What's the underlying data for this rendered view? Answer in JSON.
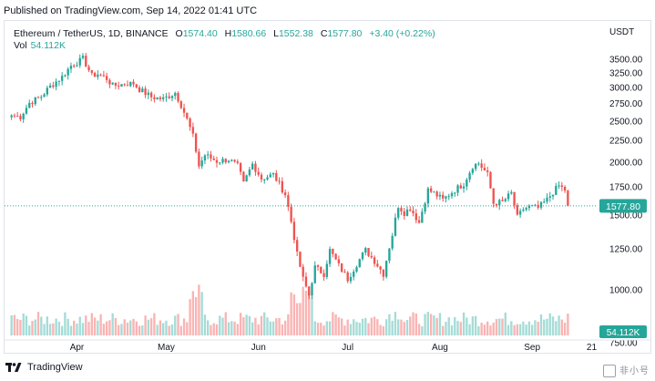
{
  "header": {
    "published": "Published on TradingView.com, Sep 14, 2022 01:41 UTC"
  },
  "legend": {
    "symbol": "Ethereum / TetherUS, 1D, BINANCE",
    "open_label": "O",
    "open": "1574.40",
    "high_label": "H",
    "high": "1580.66",
    "low_label": "L",
    "low": "1552.38",
    "close_label": "C",
    "close": "1577.80",
    "change": "+3.40 (+0.22%)",
    "vol_label": "Vol",
    "vol_value": "54.112K"
  },
  "price_axis": {
    "currency": "USDT",
    "last_price_label": "1577.80",
    "volume_label": "54.112K"
  },
  "time_axis": {
    "labels": [
      "Apr",
      "May",
      "Jun",
      "Jul",
      "Aug",
      "Sep",
      "21"
    ]
  },
  "footer": {
    "brand": "TradingView"
  },
  "watermark": {
    "text": "非小号"
  },
  "colors": {
    "up": "#26a69a",
    "down": "#ef5350",
    "up_volume": "#a5dcd7",
    "down_volume": "#f9b4b3",
    "last_price_line": "#26a69a",
    "axis_text": "#131722"
  },
  "chart_data": {
    "type": "candlestick",
    "timeframe": "1D",
    "y_scale": "log",
    "y_ticks": [
      750,
      1000,
      1250,
      1500,
      1750,
      2000,
      2250,
      2500,
      2750,
      3000,
      3250,
      3500
    ],
    "last_price": 1577.8,
    "x_start": "2022-03-10",
    "x_end": "2022-09-13",
    "waypoints": [
      [
        "2022-03-10",
        2580
      ],
      [
        "2022-03-13",
        2560
      ],
      [
        "2022-03-16",
        2760
      ],
      [
        "2022-03-20",
        2860
      ],
      [
        "2022-03-23",
        3020
      ],
      [
        "2022-03-27",
        3180
      ],
      [
        "2022-03-30",
        3380
      ],
      [
        "2022-04-02",
        3470
      ],
      [
        "2022-04-03",
        3510
      ],
      [
        "2022-04-06",
        3200
      ],
      [
        "2022-04-08",
        3230
      ],
      [
        "2022-04-11",
        3150
      ],
      [
        "2022-04-13",
        3030
      ],
      [
        "2022-04-17",
        3060
      ],
      [
        "2022-04-20",
        3070
      ],
      [
        "2022-04-22",
        2970
      ],
      [
        "2022-04-26",
        2850
      ],
      [
        "2022-04-30",
        2820
      ],
      [
        "2022-05-04",
        2920
      ],
      [
        "2022-05-06",
        2730
      ],
      [
        "2022-05-08",
        2520
      ],
      [
        "2022-05-10",
        2300
      ],
      [
        "2022-05-12",
        1960
      ],
      [
        "2022-05-14",
        2080
      ],
      [
        "2022-05-18",
        2010
      ],
      [
        "2022-05-22",
        2030
      ],
      [
        "2022-05-25",
        1960
      ],
      [
        "2022-05-27",
        1780
      ],
      [
        "2022-05-30",
        1980
      ],
      [
        "2022-06-02",
        1830
      ],
      [
        "2022-06-06",
        1870
      ],
      [
        "2022-06-10",
        1680
      ],
      [
        "2022-06-12",
        1450
      ],
      [
        "2022-06-14",
        1210
      ],
      [
        "2022-06-16",
        1060
      ],
      [
        "2022-06-18",
        970
      ],
      [
        "2022-06-20",
        1130
      ],
      [
        "2022-06-23",
        1090
      ],
      [
        "2022-06-25",
        1240
      ],
      [
        "2022-06-28",
        1140
      ],
      [
        "2022-07-01",
        1060
      ],
      [
        "2022-07-04",
        1150
      ],
      [
        "2022-07-07",
        1240
      ],
      [
        "2022-07-10",
        1170
      ],
      [
        "2022-07-13",
        1090
      ],
      [
        "2022-07-16",
        1350
      ],
      [
        "2022-07-18",
        1580
      ],
      [
        "2022-07-20",
        1520
      ],
      [
        "2022-07-22",
        1560
      ],
      [
        "2022-07-25",
        1440
      ],
      [
        "2022-07-28",
        1720
      ],
      [
        "2022-07-30",
        1690
      ],
      [
        "2022-08-02",
        1630
      ],
      [
        "2022-08-05",
        1700
      ],
      [
        "2022-08-09",
        1780
      ],
      [
        "2022-08-12",
        1960
      ],
      [
        "2022-08-14",
        1990
      ],
      [
        "2022-08-17",
        1870
      ],
      [
        "2022-08-19",
        1600
      ],
      [
        "2022-08-22",
        1610
      ],
      [
        "2022-08-25",
        1690
      ],
      [
        "2022-08-27",
        1480
      ],
      [
        "2022-08-29",
        1550
      ],
      [
        "2022-08-31",
        1570
      ],
      [
        "2022-09-03",
        1560
      ],
      [
        "2022-09-06",
        1630
      ],
      [
        "2022-09-08",
        1700
      ],
      [
        "2022-09-10",
        1760
      ],
      [
        "2022-09-12",
        1720
      ],
      [
        "2022-09-13",
        1578
      ]
    ]
  }
}
